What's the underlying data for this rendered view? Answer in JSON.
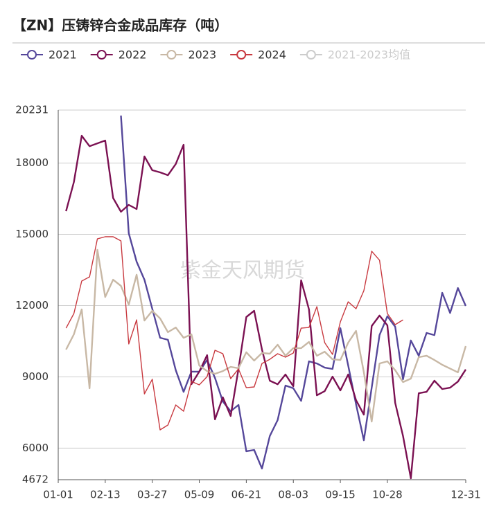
{
  "chart_data": {
    "type": "line",
    "title": "【ZN】压铸锌合金成品库存（吨）",
    "watermark": "紫金天风期货",
    "categories": [
      "01-01",
      null,
      null,
      null,
      null,
      null,
      "02-13",
      null,
      null,
      null,
      null,
      null,
      "03-27",
      null,
      null,
      null,
      null,
      null,
      "05-09",
      null,
      null,
      null,
      null,
      null,
      "06-21",
      null,
      null,
      null,
      null,
      null,
      "08-03",
      null,
      null,
      null,
      null,
      null,
      "09-15",
      null,
      null,
      null,
      null,
      null,
      "10-28",
      null,
      null,
      null,
      null,
      null,
      null,
      null,
      null,
      null,
      "12-31"
    ],
    "ylim": [
      4672,
      20231
    ],
    "yticks": [
      4672,
      6000,
      9000,
      12000,
      15000,
      18000,
      20231
    ],
    "grid": true,
    "series": [
      {
        "name": "2021",
        "color": "#55479a",
        "values": [
          null,
          null,
          null,
          null,
          null,
          null,
          null,
          null,
          20000,
          15045,
          13850,
          13090,
          11870,
          10645,
          10560,
          9280,
          8370,
          9220,
          9220,
          9710,
          8955,
          7965,
          7555,
          7820,
          5870,
          5925,
          5140,
          6510,
          7180,
          8635,
          8520,
          7990,
          9655,
          9565,
          9390,
          9335,
          11050,
          9480,
          7850,
          6330,
          8545,
          10760,
          11550,
          11110,
          8900,
          10530,
          9890,
          10850,
          10760,
          12540,
          11690,
          12740,
          11985
        ]
      },
      {
        "name": "2022",
        "color": "#7b1152",
        "values": [
          null,
          15975,
          17200,
          19150,
          18710,
          18830,
          18950,
          16530,
          15950,
          16240,
          16065,
          18280,
          17700,
          17610,
          17490,
          17960,
          18770,
          8690,
          9220,
          9915,
          7210,
          8140,
          7355,
          9335,
          11520,
          11780,
          10150,
          8840,
          8690,
          9100,
          8605,
          13065,
          11840,
          8225,
          8400,
          9010,
          8430,
          9100,
          8020,
          7410,
          11140,
          11580,
          11170,
          7905,
          6510,
          4730,
          8310,
          8370,
          8840,
          8490,
          8545,
          8800,
          9310
        ]
      },
      {
        "name": "2023",
        "color": "#c8b8a5",
        "values": [
          null,
          10150,
          10790,
          11840,
          8520,
          14345,
          12365,
          13090,
          12830,
          12040,
          13300,
          11370,
          11780,
          11460,
          10880,
          11080,
          10645,
          10790,
          9480,
          9245,
          9130,
          9245,
          9420,
          9365,
          10035,
          9685,
          10005,
          9975,
          10355,
          9890,
          10210,
          10210,
          10470,
          9890,
          10060,
          9740,
          9710,
          10440,
          10935,
          9190,
          7120,
          9565,
          9655,
          9280,
          8780,
          8925,
          9830,
          9890,
          9710,
          9510,
          9350,
          9190,
          10295
        ]
      },
      {
        "name": "2024",
        "color": "#c8393f",
        "values": [
          null,
          11050,
          11665,
          13035,
          13210,
          14810,
          14900,
          14900,
          14725,
          10385,
          11400,
          8285,
          8900,
          6770,
          6975,
          7820,
          7555,
          8810,
          8665,
          9010,
          10120,
          9975,
          8925,
          9335,
          8545,
          8575,
          9565,
          9740,
          9975,
          9830,
          10005,
          11050,
          11080,
          11955,
          10440,
          9945,
          11315,
          12160,
          11870,
          12630,
          14290,
          13910,
          11665,
          11200,
          11400,
          null,
          null,
          null,
          null,
          null,
          null,
          null,
          null
        ]
      },
      {
        "name": "2021-2023均值",
        "color": "#cccccc",
        "visible": false
      }
    ]
  }
}
